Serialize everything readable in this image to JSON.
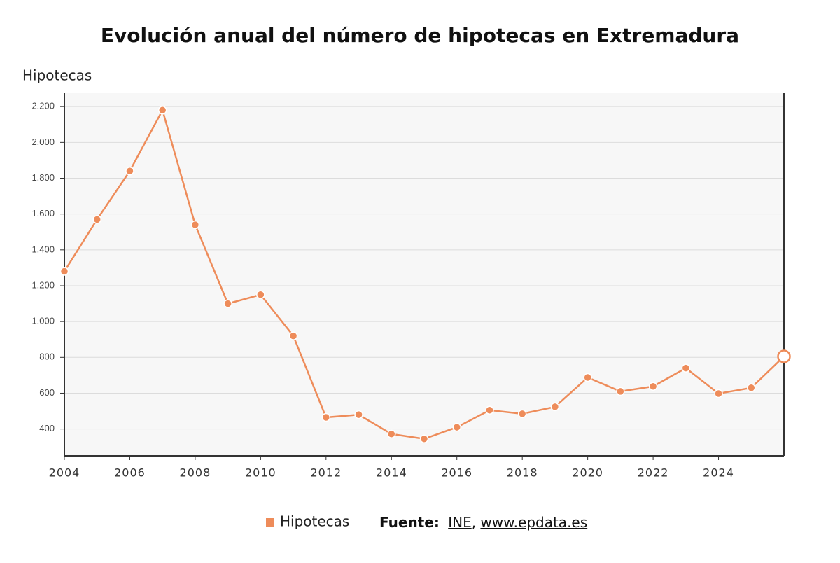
{
  "chart_data": {
    "type": "line",
    "title": "Evolución anual del número de hipotecas en Extremadura",
    "y_label": "Hipotecas",
    "x": [
      2004,
      2005,
      2006,
      2007,
      2008,
      2009,
      2010,
      2011,
      2012,
      2013,
      2014,
      2015,
      2016,
      2017,
      2018,
      2019,
      2020,
      2021,
      2022,
      2023,
      2024,
      2025,
      2026
    ],
    "series": [
      {
        "name": "Hipotecas",
        "color": "#ee8c5a",
        "values": [
          1280,
          1570,
          1840,
          2180,
          1540,
          1100,
          1150,
          920,
          465,
          480,
          372,
          345,
          410,
          505,
          485,
          524,
          688,
          610,
          638,
          740,
          598,
          630,
          805
        ]
      }
    ],
    "xlim": [
      2004,
      2026
    ],
    "xticks": [
      2004,
      2006,
      2008,
      2010,
      2012,
      2014,
      2016,
      2018,
      2020,
      2022,
      2024
    ],
    "ylim": [
      250,
      2275
    ],
    "yticks": [
      400,
      600,
      800,
      {
        "value": 1000,
        "label": "1.000"
      },
      {
        "value": 1200,
        "label": "1.200"
      },
      {
        "value": 1400,
        "label": "1.400"
      },
      {
        "value": 1600,
        "label": "1.600"
      },
      {
        "value": 1800,
        "label": "1.800"
      },
      {
        "value": 2000,
        "label": "2.000"
      },
      {
        "value": 2200,
        "label": "2.200"
      }
    ],
    "grid": true,
    "source_label": "Fuente:",
    "sources": [
      "INE",
      "www.epdata.es"
    ],
    "source_separator": ", "
  }
}
